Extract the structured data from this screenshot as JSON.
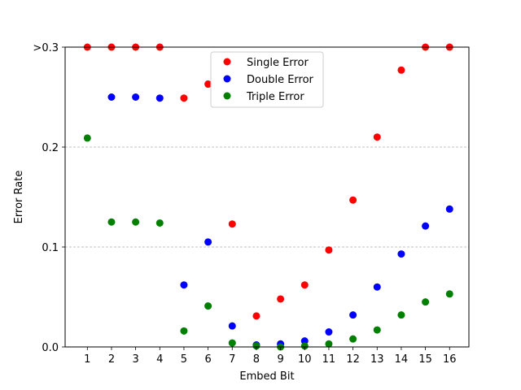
{
  "chart_data": {
    "type": "scatter",
    "title": "",
    "xlabel": "Embed Bit",
    "ylabel": "Error Rate",
    "x": [
      1,
      2,
      3,
      4,
      5,
      6,
      7,
      8,
      9,
      10,
      11,
      12,
      13,
      14,
      15,
      16
    ],
    "xticks": [
      "1",
      "2",
      "3",
      "4",
      "5",
      "6",
      "7",
      "8",
      "9",
      "10",
      "11",
      "12",
      "13",
      "14",
      "15",
      "16"
    ],
    "xlim": [
      0.08,
      16.8
    ],
    "ylim": [
      0,
      0.3
    ],
    "yticks": [
      {
        "value": 0.0,
        "label": "0.0"
      },
      {
        "value": 0.1,
        "label": "0.1"
      },
      {
        "value": 0.2,
        "label": "0.2"
      },
      {
        "value": 0.3,
        "label": ">0.3"
      }
    ],
    "grid": "horizontal dashed at 0.1 and 0.2",
    "legend_position": "upper-center",
    "series": [
      {
        "name": "Single Error",
        "color": "#ff0000",
        "values": [
          0.3,
          0.3,
          0.3,
          0.3,
          0.249,
          0.263,
          0.123,
          0.031,
          0.048,
          0.062,
          0.097,
          0.147,
          0.21,
          0.277,
          0.3,
          0.3
        ]
      },
      {
        "name": "Double Error",
        "color": "#0000ff",
        "values": [
          null,
          0.25,
          0.25,
          0.249,
          0.062,
          0.105,
          0.021,
          0.002,
          0.003,
          0.006,
          0.015,
          0.032,
          0.06,
          0.093,
          0.121,
          0.138
        ]
      },
      {
        "name": "Triple Error",
        "color": "#008000",
        "values": [
          0.209,
          0.125,
          0.125,
          0.124,
          0.016,
          0.041,
          0.004,
          0.001,
          0.0,
          0.001,
          0.003,
          0.008,
          0.017,
          0.032,
          0.045,
          0.053
        ]
      }
    ]
  }
}
